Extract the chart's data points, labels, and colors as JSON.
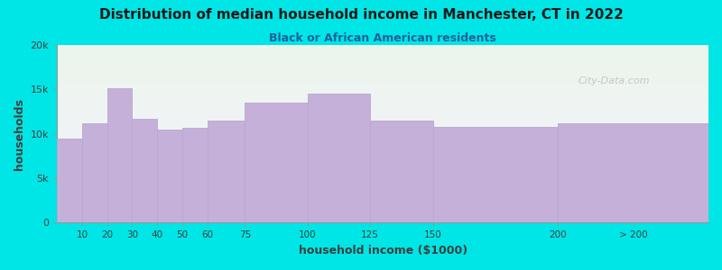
{
  "title": "Distribution of median household income in Manchester, CT in 2022",
  "subtitle": "Black or African American residents",
  "xlabel": "household income ($1000)",
  "ylabel": "households",
  "background_outer": "#00e5e5",
  "bar_color": "#c4b0d8",
  "bar_edge_color": "#b8a8d0",
  "title_color": "#1a1a1a",
  "subtitle_color": "#2060a0",
  "axis_label_color": "#404040",
  "tick_label_color": "#404040",
  "ytick_labels": [
    "0",
    "5k",
    "10k",
    "15k",
    "20k"
  ],
  "ytick_values": [
    0,
    5000,
    10000,
    15000,
    20000
  ],
  "ylim": [
    0,
    20000
  ],
  "watermark": "City-Data.com",
  "bar_lefts": [
    0,
    10,
    20,
    30,
    40,
    50,
    60,
    75,
    100,
    125,
    150,
    200
  ],
  "bar_rights": [
    10,
    20,
    30,
    40,
    50,
    60,
    75,
    100,
    125,
    150,
    200,
    260
  ],
  "bar_values": [
    9500,
    11200,
    15200,
    11700,
    10500,
    10700,
    11500,
    13500,
    14500,
    11500,
    10800,
    11200
  ],
  "xtick_positions": [
    10,
    20,
    30,
    40,
    50,
    60,
    75,
    100,
    125,
    150,
    200,
    230
  ],
  "xtick_labels": [
    "10",
    "20",
    "30",
    "40",
    "50",
    "60",
    "75",
    "100",
    "125",
    "150",
    "200",
    "> 200"
  ]
}
